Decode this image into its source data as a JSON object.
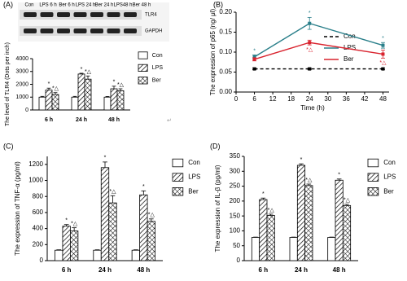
{
  "chart_data": [
    {
      "type": "bar",
      "panel_label": "(A)",
      "blot": {
        "lanes": [
          "Con",
          "LPS 6 h",
          "Ber 6 h",
          "LPS 24 h",
          "Ber 24 h",
          "LPS48 h",
          "Ber 48 h"
        ],
        "bands": [
          "TLR4",
          "GAPDH"
        ]
      },
      "ylabel": "The level of TLR4 (Dots per inch)",
      "categories": [
        "6 h",
        "24 h",
        "48 h"
      ],
      "series": [
        {
          "name": "Con",
          "pattern": "none",
          "color": "#ffffff",
          "values": [
            1000,
            1000,
            1000
          ],
          "errors": [
            60,
            60,
            50
          ]
        },
        {
          "name": "LPS",
          "pattern": "diagonal",
          "color": "#000000",
          "values": [
            1550,
            2800,
            1650
          ],
          "errors": [
            150,
            60,
            200
          ],
          "sig": [
            "*",
            "*",
            "*"
          ]
        },
        {
          "name": "Ber",
          "pattern": "crosshatch",
          "color": "#000000",
          "values": [
            1200,
            2400,
            1500
          ],
          "errors": [
            150,
            250,
            150
          ],
          "sig": [
            "*△",
            "*△",
            "*△"
          ]
        }
      ],
      "ylim": [
        0,
        4000
      ],
      "yticks": [
        0,
        1000,
        2000,
        3000,
        4000
      ],
      "note": "↵"
    },
    {
      "type": "line",
      "panel_label": "(B)",
      "ylabel": "The expression of p65 (ng/ μl)",
      "xlabel": "Time (h)",
      "x": [
        6,
        24,
        48
      ],
      "series": [
        {
          "name": "Con",
          "color": "#000000",
          "dash": true,
          "values": [
            0.058,
            0.058,
            0.058
          ],
          "errors": [
            0.002,
            0.002,
            0.002
          ]
        },
        {
          "name": "LPS",
          "color": "#2a7f8a",
          "dash": false,
          "values": [
            0.088,
            0.172,
            0.117
          ],
          "errors": [
            0.005,
            0.015,
            0.007
          ],
          "sig": [
            "*",
            "*",
            "*"
          ]
        },
        {
          "name": "Ber",
          "color": "#d9232e",
          "dash": false,
          "values": [
            0.082,
            0.124,
            0.095
          ],
          "errors": [
            0.004,
            0.006,
            0.01
          ],
          "sig": [
            null,
            "*△",
            "*△"
          ]
        }
      ],
      "xlim": [
        0,
        50
      ],
      "xticks": [
        0,
        6,
        12,
        18,
        24,
        30,
        36,
        42,
        48
      ],
      "ylim": [
        0,
        0.2
      ],
      "yticks": [
        {
          "value": 0,
          "label": "0.00"
        },
        {
          "value": 0.05,
          "label": "0.05"
        },
        {
          "value": 0.1,
          "label": "0.10"
        },
        {
          "value": 0.15,
          "label": "0.15"
        },
        {
          "value": 0.2,
          "label": "0.20"
        }
      ]
    },
    {
      "type": "bar",
      "panel_label": "(C)",
      "ylabel": "The expression of TNF-α (pg/ml)",
      "categories": [
        "6 h",
        "24 h",
        "48 h"
      ],
      "series": [
        {
          "name": "Con",
          "pattern": "none",
          "color": "#ffffff",
          "values": [
            130,
            130,
            130
          ],
          "errors": [
            5,
            5,
            5
          ]
        },
        {
          "name": "LPS",
          "pattern": "diagonal",
          "color": "#000000",
          "values": [
            430,
            1160,
            820
          ],
          "errors": [
            20,
            70,
            50
          ],
          "sig": [
            "*",
            "*",
            "*"
          ]
        },
        {
          "name": "Ber",
          "pattern": "crosshatch",
          "color": "#000000",
          "values": [
            370,
            720,
            490
          ],
          "errors": [
            40,
            90,
            30
          ],
          "sig": [
            "*△",
            "*△",
            "*△"
          ]
        }
      ],
      "ylim": [
        0,
        1300
      ],
      "yticks": [
        0,
        200,
        400,
        600,
        800,
        1000,
        1200
      ]
    },
    {
      "type": "bar",
      "panel_label": "(D)",
      "ylabel": "The expression of IL-β (pg/ml)",
      "categories": [
        "6 h",
        "24 h",
        "48 h"
      ],
      "series": [
        {
          "name": "Con",
          "pattern": "none",
          "color": "#ffffff",
          "values": [
            78,
            78,
            78
          ],
          "errors": [
            1,
            1,
            1
          ]
        },
        {
          "name": "LPS",
          "pattern": "diagonal",
          "color": "#000000",
          "values": [
            205,
            320,
            270
          ],
          "errors": [
            5,
            5,
            4
          ],
          "sig": [
            "*",
            "*",
            "*"
          ]
        },
        {
          "name": "Ber",
          "pattern": "crosshatch",
          "color": "#000000",
          "values": [
            152,
            252,
            185
          ],
          "errors": [
            4,
            5,
            4
          ],
          "sig": [
            "*△",
            "*△",
            "*△"
          ]
        }
      ],
      "ylim": [
        0,
        350
      ],
      "yticks": [
        0,
        50,
        100,
        150,
        200,
        250,
        300,
        350
      ]
    }
  ]
}
